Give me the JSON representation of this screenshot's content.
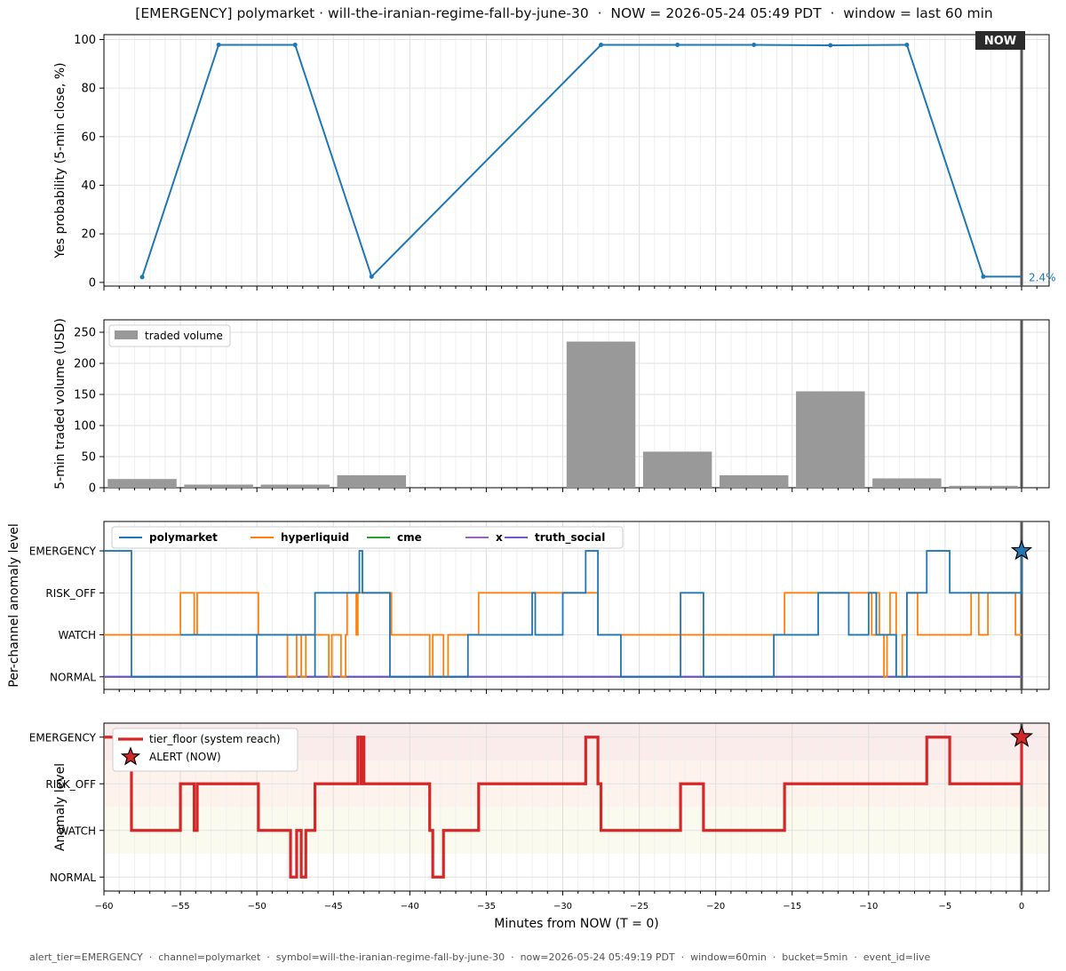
{
  "title": "[EMERGENCY] polymarket · will-the-iranian-regime-fall-by-june-30  ·  NOW = 2026-05-24 05:49 PDT  ·  window = last 60 min",
  "footer": "alert_tier=EMERGENCY  ·  channel=polymarket  ·  symbol=will-the-iranian-regime-fall-by-june-30  ·  now=2026-05-24 05:49:19 PDT  ·  window=60min  ·  bucket=5min  ·  event_id=live",
  "now_label": "NOW",
  "colors": {
    "polymarket": "#1f77b4",
    "hyperliquid": "#ff7f0e",
    "cme": "#2ca02c",
    "x": "#9467bd",
    "truth_social": "#6a5acd",
    "tier_floor": "#d62728",
    "volume_bar": "#999999",
    "now_line": "#555555"
  },
  "chart_data": [
    {
      "type": "line",
      "ylabel": "Yes probability (5-min close, %)",
      "xlim": [
        -60,
        1.8
      ],
      "ylim": [
        -1.5,
        102
      ],
      "yticks": [
        "0",
        "20",
        "40",
        "60",
        "80",
        "100"
      ],
      "grid": true,
      "x": [
        -57.5,
        -52.5,
        -47.5,
        -42.5,
        -27.5,
        -22.5,
        -17.5,
        -12.5,
        -7.5,
        -2.5,
        0
      ],
      "y": [
        2.2,
        97.8,
        97.8,
        2.4,
        97.8,
        97.8,
        97.8,
        97.6,
        97.8,
        2.4,
        2.4
      ],
      "last_label": "2.4%"
    },
    {
      "type": "bar",
      "ylabel": "5-min traded volume (USD)",
      "xlim": [
        -60,
        1.8
      ],
      "ylim": [
        0,
        270
      ],
      "yticks": [
        "0",
        "50",
        "100",
        "150",
        "200",
        "250"
      ],
      "grid": true,
      "legend": [
        "traded volume"
      ],
      "legend_position": "upper-left",
      "x": [
        -57.5,
        -52.5,
        -47.5,
        -42.5,
        -37.5,
        -32.5,
        -27.5,
        -22.5,
        -17.5,
        -12.5,
        -7.5,
        -2.5
      ],
      "values": [
        14,
        5,
        5,
        20,
        0,
        0,
        235,
        58,
        20,
        155,
        15,
        3
      ]
    },
    {
      "type": "line",
      "ylabel": "Per-channel anomaly level",
      "xlim": [
        -60,
        1.8
      ],
      "ylim": [
        -0.3,
        3.7
      ],
      "ytick_labels": [
        "NORMAL",
        "WATCH",
        "RISK_OFF",
        "EMERGENCY"
      ],
      "grid": true,
      "legend_position": "upper-left",
      "series": [
        {
          "name": "polymarket",
          "color": "#1f77b4",
          "steps": [
            [
              -60,
              3
            ],
            [
              -58.2,
              0
            ],
            [
              -50,
              1
            ],
            [
              -55,
              1
            ],
            [
              -50,
              1
            ],
            [
              -46.2,
              0
            ],
            [
              -46.2,
              2
            ],
            [
              -43.3,
              3
            ],
            [
              -43.1,
              2
            ],
            [
              -41.3,
              0
            ],
            [
              -36.2,
              1
            ],
            [
              -32,
              2
            ],
            [
              -31.8,
              1
            ],
            [
              -30,
              2
            ],
            [
              -28.5,
              3
            ],
            [
              -27.7,
              1
            ],
            [
              -26.2,
              0
            ],
            [
              -22.3,
              2
            ],
            [
              -20.8,
              0
            ],
            [
              -16.2,
              1
            ],
            [
              -13.3,
              2
            ],
            [
              -11.3,
              1
            ],
            [
              -10,
              2
            ],
            [
              -9.5,
              1
            ],
            [
              -8.2,
              0
            ],
            [
              -7.5,
              2
            ],
            [
              -6.2,
              3
            ],
            [
              -4.7,
              2
            ],
            [
              0,
              3
            ]
          ]
        },
        {
          "name": "hyperliquid",
          "color": "#ff7f0e",
          "steps": [
            [
              -60,
              1
            ],
            [
              -55,
              2
            ],
            [
              -54.1,
              1
            ],
            [
              -53.9,
              2
            ],
            [
              -49.9,
              1
            ],
            [
              -48,
              0
            ],
            [
              -47.4,
              1
            ],
            [
              -47.1,
              0
            ],
            [
              -46.8,
              1
            ],
            [
              -45.3,
              0
            ],
            [
              -45.1,
              1
            ],
            [
              -44.5,
              0
            ],
            [
              -44.2,
              1
            ],
            [
              -44.1,
              2
            ],
            [
              -43.5,
              1
            ],
            [
              -43.4,
              2
            ],
            [
              -43.2,
              2
            ],
            [
              -42.9,
              2
            ],
            [
              -41.2,
              1
            ],
            [
              -40.9,
              1
            ],
            [
              -38.7,
              0
            ],
            [
              -38.5,
              1
            ],
            [
              -37.8,
              0
            ],
            [
              -37.5,
              1
            ],
            [
              -35.5,
              2
            ],
            [
              -27.7,
              1
            ],
            [
              -26.2,
              1
            ],
            [
              -15.5,
              2
            ],
            [
              -9.8,
              1
            ],
            [
              -9.5,
              2
            ],
            [
              -9.3,
              1
            ],
            [
              -9,
              0
            ],
            [
              -8.8,
              1
            ],
            [
              -8.6,
              2
            ],
            [
              -8.2,
              0
            ],
            [
              -7.8,
              1
            ],
            [
              -7.5,
              2
            ],
            [
              -6.8,
              1
            ],
            [
              -3.3,
              2
            ],
            [
              -2.8,
              1
            ],
            [
              -2.2,
              2
            ],
            [
              -0.4,
              1
            ],
            [
              0,
              1
            ]
          ]
        },
        {
          "name": "cme",
          "color": "#2ca02c",
          "steps": [
            [
              -60,
              0
            ],
            [
              0,
              0
            ]
          ]
        },
        {
          "name": "x",
          "color": "#9467bd",
          "steps": [
            [
              -60,
              0
            ],
            [
              0,
              0
            ]
          ]
        },
        {
          "name": "truth_social",
          "color": "#6a5acd",
          "steps": [
            [
              -60,
              0
            ],
            [
              0,
              0
            ]
          ]
        }
      ],
      "alert_marker": {
        "x": 0,
        "y": 3
      }
    },
    {
      "type": "line",
      "ylabel": "Anomaly level",
      "xlabel": "Minutes from NOW (T = 0)",
      "xlim": [
        -60,
        1.8
      ],
      "ylim": [
        -0.3,
        3.3
      ],
      "ytick_labels": [
        "NORMAL",
        "WATCH",
        "RISK_OFF",
        "EMERGENCY"
      ],
      "xticks": [
        "−60",
        "−55",
        "−50",
        "−45",
        "−40",
        "−35",
        "−30",
        "−25",
        "−20",
        "−15",
        "−10",
        "−5",
        "0"
      ],
      "grid": true,
      "legend_position": "upper-left",
      "series": [
        {
          "name": "tier_floor (system reach)",
          "color": "#d62728",
          "steps": [
            [
              -60,
              3
            ],
            [
              -58.2,
              1
            ],
            [
              -55,
              2
            ],
            [
              -54.1,
              1
            ],
            [
              -53.9,
              2
            ],
            [
              -49.9,
              1
            ],
            [
              -47.8,
              0
            ],
            [
              -47.4,
              1
            ],
            [
              -47.1,
              0
            ],
            [
              -46.8,
              1
            ],
            [
              -46.2,
              2
            ],
            [
              -43.4,
              3
            ],
            [
              -43.2,
              2
            ],
            [
              -43.1,
              3
            ],
            [
              -43,
              2
            ],
            [
              -38.7,
              1
            ],
            [
              -38.5,
              0
            ],
            [
              -37.8,
              1
            ],
            [
              -35.5,
              2
            ],
            [
              -28.5,
              3
            ],
            [
              -27.7,
              2
            ],
            [
              -27.5,
              1
            ],
            [
              -22.3,
              2
            ],
            [
              -20.8,
              1
            ],
            [
              -15.5,
              2
            ],
            [
              -6.2,
              3
            ],
            [
              -4.7,
              2
            ],
            [
              0,
              3
            ]
          ]
        }
      ],
      "alert_marker": {
        "x": 0,
        "y": 3,
        "label": "ALERT (NOW)"
      }
    }
  ]
}
